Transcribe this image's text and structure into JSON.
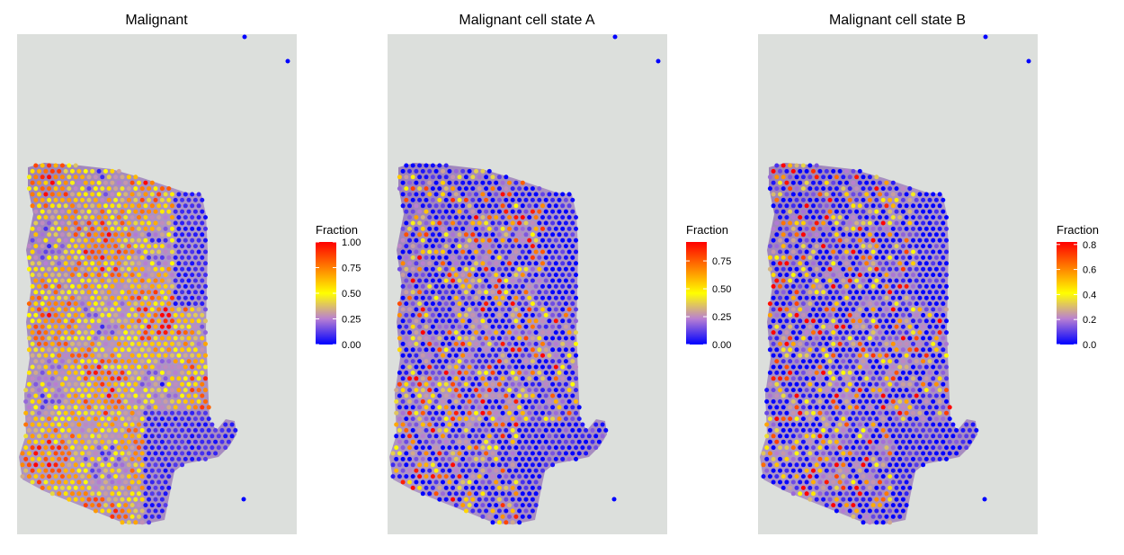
{
  "chart_data": [
    {
      "type": "scatter",
      "subtype": "spatial-transcriptomics-overlay",
      "title": "Malignant",
      "legend": {
        "title": "Fraction",
        "ticks": [
          0.0,
          0.25,
          0.5,
          0.75,
          1.0
        ],
        "tick_labels": [
          "0.00",
          "0.25",
          "0.50",
          "0.75",
          "1.00"
        ],
        "range": [
          0,
          1.0
        ],
        "colors": [
          "#0000ff",
          "#b87fd2",
          "#ffff00",
          "#ff7f00",
          "#ff0000"
        ],
        "placement": "right"
      }
    },
    {
      "type": "scatter",
      "subtype": "spatial-transcriptomics-overlay",
      "title": "Malignant cell state A",
      "legend": {
        "title": "Fraction",
        "ticks": [
          0.0,
          0.25,
          0.5,
          0.75
        ],
        "tick_labels": [
          "0.00",
          "0.25",
          "0.50",
          "0.75"
        ],
        "range": [
          0,
          0.92
        ],
        "colors": [
          "#0000ff",
          "#b87fd2",
          "#ffff00",
          "#ff7f00",
          "#ff0000"
        ],
        "placement": "right"
      }
    },
    {
      "type": "scatter",
      "subtype": "spatial-transcriptomics-overlay",
      "title": "Malignant cell state B",
      "legend": {
        "title": "Fraction",
        "ticks": [
          0.0,
          0.2,
          0.4,
          0.6,
          0.8
        ],
        "tick_labels": [
          "0.0",
          "0.2",
          "0.4",
          "0.6",
          "0.8"
        ],
        "range": [
          0,
          0.82
        ],
        "colors": [
          "#0000ff",
          "#b87fd2",
          "#ffff00",
          "#ff7f00",
          "#ff0000"
        ],
        "placement": "right"
      }
    }
  ]
}
